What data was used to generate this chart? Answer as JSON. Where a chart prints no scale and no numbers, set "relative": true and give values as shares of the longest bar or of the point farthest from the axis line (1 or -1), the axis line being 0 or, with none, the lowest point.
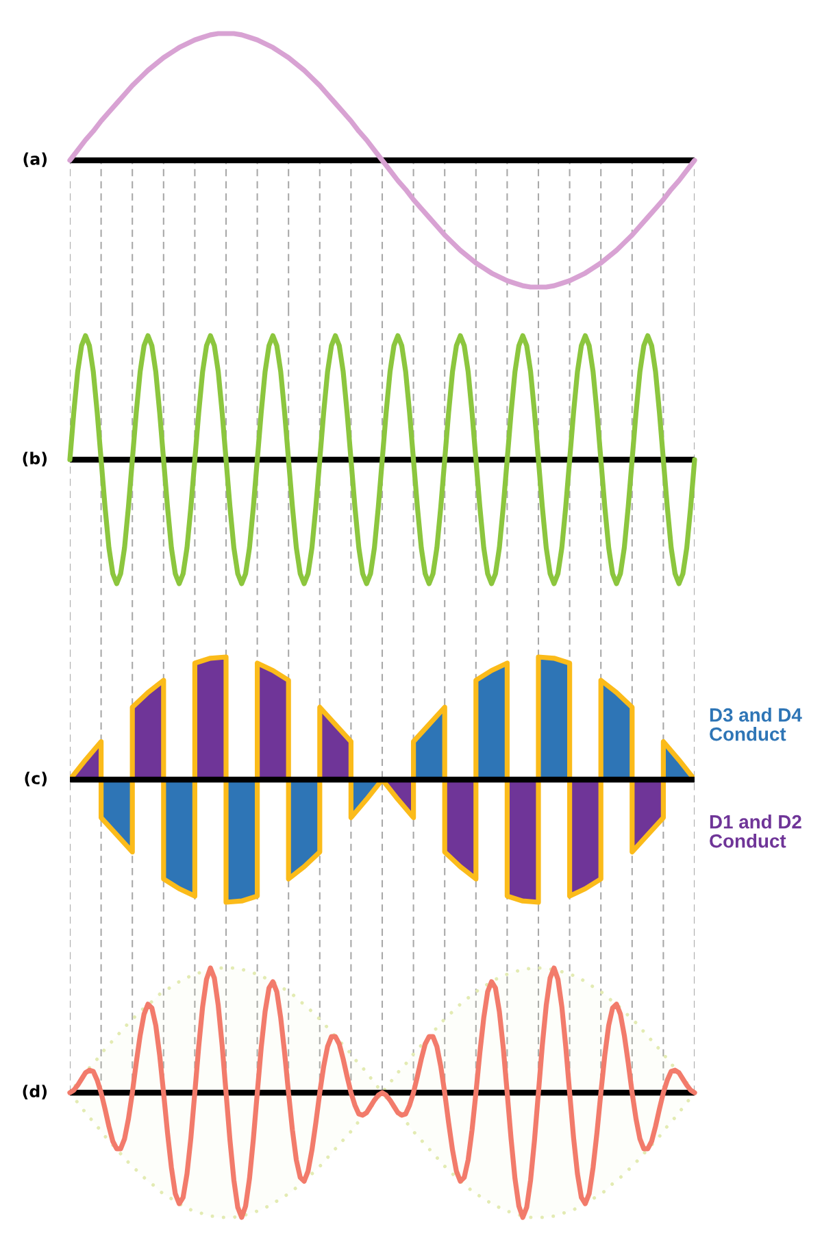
{
  "chart_data": [
    {
      "type": "line",
      "title": "(a)",
      "relative": true,
      "grid": "x",
      "categories": [
        null,
        null,
        null,
        null,
        null,
        null,
        null,
        null,
        null,
        null,
        null,
        null,
        null,
        null,
        null,
        null,
        null,
        null,
        null,
        null,
        null,
        null,
        null,
        null,
        null,
        null,
        null,
        null,
        null,
        null,
        null,
        null,
        null,
        null,
        null,
        null,
        null,
        null,
        null,
        null,
        null,
        null,
        null,
        null,
        null,
        null,
        null,
        null,
        null,
        null,
        null,
        null,
        null,
        null,
        null,
        null,
        null,
        null,
        null,
        null,
        null,
        null,
        null,
        null,
        null,
        null,
        null,
        null,
        null,
        null,
        null,
        null,
        null,
        null,
        null,
        null,
        null,
        null,
        null,
        null,
        null
      ],
      "series": [
        {
          "color": "#d8a2d3",
          "values": [
            0,
            0.08,
            0.16,
            0.23,
            0.31,
            0.38,
            0.45,
            0.52,
            0.59,
            0.65,
            0.71,
            0.76,
            0.81,
            0.85,
            0.89,
            0.92,
            0.95,
            0.97,
            0.99,
            1,
            1,
            1,
            0.99,
            0.97,
            0.95,
            0.92,
            0.89,
            0.85,
            0.81,
            0.76,
            0.71,
            0.65,
            0.59,
            0.52,
            0.45,
            0.38,
            0.31,
            0.23,
            0.16,
            0.08,
            0,
            -0.08,
            -0.16,
            -0.23,
            -0.31,
            -0.38,
            -0.45,
            -0.52,
            -0.59,
            -0.65,
            -0.71,
            -0.76,
            -0.81,
            -0.85,
            -0.89,
            -0.92,
            -0.95,
            -0.97,
            -0.99,
            -1,
            -1,
            -1,
            -0.99,
            -0.97,
            -0.95,
            -0.92,
            -0.89,
            -0.85,
            -0.81,
            -0.76,
            -0.71,
            -0.65,
            -0.59,
            -0.52,
            -0.45,
            -0.38,
            -0.31,
            -0.23,
            -0.16,
            -0.08,
            0
          ]
        }
      ]
    },
    {
      "type": "line",
      "title": "(b)",
      "relative": true,
      "grid": "x",
      "categories": [
        null,
        null,
        null,
        null,
        null,
        null,
        null,
        null,
        null,
        null,
        null,
        null,
        null,
        null,
        null,
        null,
        null,
        null,
        null,
        null,
        null,
        null,
        null,
        null,
        null,
        null,
        null,
        null,
        null,
        null,
        null,
        null,
        null,
        null,
        null,
        null,
        null,
        null,
        null,
        null,
        null,
        null,
        null,
        null,
        null,
        null,
        null,
        null,
        null,
        null,
        null,
        null,
        null,
        null,
        null,
        null,
        null,
        null,
        null,
        null,
        null,
        null,
        null,
        null,
        null,
        null,
        null,
        null,
        null,
        null,
        null,
        null,
        null,
        null,
        null,
        null,
        null,
        null,
        null,
        null,
        null,
        null,
        null,
        null,
        null,
        null,
        null,
        null,
        null,
        null,
        null,
        null,
        null,
        null,
        null,
        null,
        null,
        null,
        null,
        null,
        null,
        null,
        null,
        null,
        null,
        null,
        null,
        null,
        null,
        null,
        null,
        null,
        null,
        null,
        null,
        null,
        null,
        null,
        null,
        null,
        null,
        null,
        null,
        null,
        null,
        null,
        null,
        null,
        null,
        null,
        null,
        null,
        null,
        null,
        null,
        null,
        null,
        null,
        null,
        null,
        null,
        null,
        null,
        null,
        null,
        null,
        null,
        null,
        null,
        null,
        null,
        null,
        null,
        null,
        null,
        null,
        null,
        null,
        null,
        null,
        null
      ],
      "series": [
        {
          "color": "#8cc63e",
          "values": [
            0,
            0.38,
            0.71,
            0.92,
            1,
            0.92,
            0.71,
            0.38,
            0,
            -0.38,
            -0.71,
            -0.92,
            -1,
            -0.92,
            -0.71,
            -0.38,
            0,
            0.38,
            0.71,
            0.92,
            1,
            0.92,
            0.71,
            0.38,
            0,
            -0.38,
            -0.71,
            -0.92,
            -1,
            -0.92,
            -0.71,
            -0.38,
            0,
            0.38,
            0.71,
            0.92,
            1,
            0.92,
            0.71,
            0.38,
            0,
            -0.38,
            -0.71,
            -0.92,
            -1,
            -0.92,
            -0.71,
            -0.38,
            0,
            0.38,
            0.71,
            0.92,
            1,
            0.92,
            0.71,
            0.38,
            0,
            -0.38,
            -0.71,
            -0.92,
            -1,
            -0.92,
            -0.71,
            -0.38,
            0,
            0.38,
            0.71,
            0.92,
            1,
            0.92,
            0.71,
            0.38,
            0,
            -0.38,
            -0.71,
            -0.92,
            -1,
            -0.92,
            -0.71,
            -0.38,
            0,
            0.38,
            0.71,
            0.92,
            1,
            0.92,
            0.71,
            0.38,
            0,
            -0.38,
            -0.71,
            -0.92,
            -1,
            -0.92,
            -0.71,
            -0.38,
            0,
            0.38,
            0.71,
            0.92,
            1,
            0.92,
            0.71,
            0.38,
            0,
            -0.38,
            -0.71,
            -0.92,
            -1,
            -0.92,
            -0.71,
            -0.38,
            0,
            0.38,
            0.71,
            0.92,
            1,
            0.92,
            0.71,
            0.38,
            0,
            -0.38,
            -0.71,
            -0.92,
            -1,
            -0.92,
            -0.71,
            -0.38,
            0,
            0.38,
            0.71,
            0.92,
            1,
            0.92,
            0.71,
            0.38,
            0,
            -0.38,
            -0.71,
            -0.92,
            -1,
            -0.92,
            -0.71,
            -0.38,
            0,
            0.38,
            0.71,
            0.92,
            1,
            0.92,
            0.71,
            0.38,
            0,
            -0.38,
            -0.71,
            -0.92,
            -1,
            -0.92,
            -0.71,
            -0.38,
            0
          ]
        }
      ]
    },
    {
      "type": "area",
      "title": "(c)",
      "relative": true,
      "grid": "x",
      "categories": [
        null,
        null,
        null,
        null,
        null,
        null,
        null,
        null,
        null,
        null,
        null,
        null,
        null,
        null,
        null,
        null,
        null,
        null,
        null,
        null,
        null,
        null,
        null,
        null,
        null,
        null,
        null,
        null,
        null,
        null,
        null,
        null,
        null,
        null,
        null,
        null,
        null,
        null,
        null,
        null,
        null
      ],
      "series": [
        {
          "name": "D3 and D4 Conduct",
          "color": "#2e75b6",
          "values": [
            null,
            null,
            -0.31,
            -0.45,
            -0.59,
            null,
            null,
            null,
            null,
            null,
            null,
            null,
            null,
            null,
            null,
            null,
            null,
            null,
            null,
            null,
            null,
            null,
            null,
            null,
            null,
            null,
            null,
            null,
            null,
            null,
            null,
            null,
            null,
            null,
            null,
            null,
            null,
            null,
            null,
            null,
            null
          ]
        },
        {
          "name": "D1 and D2 Conduct",
          "color": "#6f3598",
          "values": [
            0,
            0.16,
            0.31,
            null,
            null,
            null,
            null,
            null,
            null,
            null,
            null,
            null,
            null,
            null,
            null,
            null,
            null,
            null,
            null,
            null,
            null,
            null,
            null,
            null,
            null,
            null,
            null,
            null,
            null,
            null,
            null,
            null,
            null,
            null,
            null,
            null,
            null,
            null,
            null,
            null,
            null
          ]
        },
        {
          "color": "#6f3598",
          "values": [
            null,
            null,
            null,
            null,
            0.59,
            0.71,
            0.81,
            null,
            null,
            null,
            null,
            null,
            null,
            null,
            null,
            null,
            null,
            null,
            null,
            null,
            null,
            null,
            null,
            null,
            null,
            null,
            null,
            null,
            null,
            null,
            null,
            null,
            null,
            null,
            null,
            null,
            null,
            null,
            null,
            null,
            null
          ]
        },
        {
          "color": "#2e75b6",
          "values": [
            null,
            null,
            null,
            null,
            null,
            null,
            -0.81,
            -0.89,
            -0.95,
            null,
            null,
            null,
            null,
            null,
            null,
            null,
            null,
            null,
            null,
            null,
            null,
            null,
            null,
            null,
            null,
            null,
            null,
            null,
            null,
            null,
            null,
            null,
            null,
            null,
            null,
            null,
            null,
            null,
            null,
            null,
            null
          ]
        },
        {
          "color": "#6f3598",
          "values": [
            null,
            null,
            null,
            null,
            null,
            null,
            null,
            null,
            0.95,
            0.99,
            1,
            null,
            null,
            null,
            null,
            null,
            null,
            null,
            null,
            null,
            null,
            null,
            null,
            null,
            null,
            null,
            null,
            null,
            null,
            null,
            null,
            null,
            null,
            null,
            null,
            null,
            null,
            null,
            null,
            null,
            null
          ]
        },
        {
          "color": "#2e75b6",
          "values": [
            null,
            null,
            null,
            null,
            null,
            null,
            null,
            null,
            null,
            null,
            -1,
            -0.99,
            -0.95,
            null,
            null,
            null,
            null,
            null,
            null,
            null,
            null,
            null,
            null,
            null,
            null,
            null,
            null,
            null,
            null,
            null,
            null,
            null,
            null,
            null,
            null,
            null,
            null,
            null,
            null,
            null,
            null
          ]
        },
        {
          "color": "#6f3598",
          "values": [
            null,
            null,
            null,
            null,
            null,
            null,
            null,
            null,
            null,
            null,
            null,
            null,
            0.95,
            0.89,
            0.81,
            null,
            null,
            null,
            null,
            null,
            null,
            null,
            null,
            null,
            null,
            null,
            null,
            null,
            null,
            null,
            null,
            null,
            null,
            null,
            null,
            null,
            null,
            null,
            null,
            null,
            null
          ]
        },
        {
          "color": "#2e75b6",
          "values": [
            null,
            null,
            null,
            null,
            null,
            null,
            null,
            null,
            null,
            null,
            null,
            null,
            null,
            null,
            -0.81,
            -0.71,
            -0.59,
            null,
            null,
            null,
            null,
            null,
            null,
            null,
            null,
            null,
            null,
            null,
            null,
            null,
            null,
            null,
            null,
            null,
            null,
            null,
            null,
            null,
            null,
            null,
            null
          ]
        },
        {
          "color": "#6f3598",
          "values": [
            null,
            null,
            null,
            null,
            null,
            null,
            null,
            null,
            null,
            null,
            null,
            null,
            null,
            null,
            null,
            null,
            0.59,
            0.45,
            0.31,
            null,
            null,
            null,
            null,
            null,
            null,
            null,
            null,
            null,
            null,
            null,
            null,
            null,
            null,
            null,
            null,
            null,
            null,
            null,
            null,
            null,
            null
          ]
        },
        {
          "color": "#2e75b6",
          "values": [
            null,
            null,
            null,
            null,
            null,
            null,
            null,
            null,
            null,
            null,
            null,
            null,
            null,
            null,
            null,
            null,
            null,
            null,
            -0.31,
            -0.16,
            0,
            null,
            null,
            null,
            null,
            null,
            null,
            null,
            null,
            null,
            null,
            null,
            null,
            null,
            null,
            null,
            null,
            null,
            null,
            null,
            null
          ]
        },
        {
          "color": "#6f3598",
          "values": [
            null,
            null,
            null,
            null,
            null,
            null,
            null,
            null,
            null,
            null,
            null,
            null,
            null,
            null,
            null,
            null,
            null,
            null,
            null,
            null,
            0,
            -0.16,
            -0.31,
            null,
            null,
            null,
            null,
            null,
            null,
            null,
            null,
            null,
            null,
            null,
            null,
            null,
            null,
            null,
            null,
            null,
            null
          ]
        },
        {
          "color": "#2e75b6",
          "values": [
            null,
            null,
            null,
            null,
            null,
            null,
            null,
            null,
            null,
            null,
            null,
            null,
            null,
            null,
            null,
            null,
            null,
            null,
            null,
            null,
            null,
            null,
            0.31,
            0.45,
            0.59,
            null,
            null,
            null,
            null,
            null,
            null,
            null,
            null,
            null,
            null,
            null,
            null,
            null,
            null,
            null,
            null
          ]
        },
        {
          "color": "#6f3598",
          "values": [
            null,
            null,
            null,
            null,
            null,
            null,
            null,
            null,
            null,
            null,
            null,
            null,
            null,
            null,
            null,
            null,
            null,
            null,
            null,
            null,
            null,
            null,
            null,
            null,
            -0.59,
            -0.71,
            -0.81,
            null,
            null,
            null,
            null,
            null,
            null,
            null,
            null,
            null,
            null,
            null,
            null,
            null,
            null
          ]
        },
        {
          "color": "#2e75b6",
          "values": [
            null,
            null,
            null,
            null,
            null,
            null,
            null,
            null,
            null,
            null,
            null,
            null,
            null,
            null,
            null,
            null,
            null,
            null,
            null,
            null,
            null,
            null,
            null,
            null,
            null,
            null,
            0.81,
            0.89,
            0.95,
            null,
            null,
            null,
            null,
            null,
            null,
            null,
            null,
            null,
            null,
            null,
            null
          ]
        },
        {
          "color": "#6f3598",
          "values": [
            null,
            null,
            null,
            null,
            null,
            null,
            null,
            null,
            null,
            null,
            null,
            null,
            null,
            null,
            null,
            null,
            null,
            null,
            null,
            null,
            null,
            null,
            null,
            null,
            null,
            null,
            null,
            null,
            -0.95,
            -0.99,
            -1,
            null,
            null,
            null,
            null,
            null,
            null,
            null,
            null,
            null,
            null
          ]
        },
        {
          "color": "#2e75b6",
          "values": [
            null,
            null,
            null,
            null,
            null,
            null,
            null,
            null,
            null,
            null,
            null,
            null,
            null,
            null,
            null,
            null,
            null,
            null,
            null,
            null,
            null,
            null,
            null,
            null,
            null,
            null,
            null,
            null,
            null,
            null,
            1,
            0.99,
            0.95,
            null,
            null,
            null,
            null,
            null,
            null,
            null,
            null
          ]
        },
        {
          "color": "#6f3598",
          "values": [
            null,
            null,
            null,
            null,
            null,
            null,
            null,
            null,
            null,
            null,
            null,
            null,
            null,
            null,
            null,
            null,
            null,
            null,
            null,
            null,
            null,
            null,
            null,
            null,
            null,
            null,
            null,
            null,
            null,
            null,
            null,
            null,
            -0.95,
            -0.89,
            -0.81,
            null,
            null,
            null,
            null,
            null,
            null
          ]
        },
        {
          "color": "#2e75b6",
          "values": [
            null,
            null,
            null,
            null,
            null,
            null,
            null,
            null,
            null,
            null,
            null,
            null,
            null,
            null,
            null,
            null,
            null,
            null,
            null,
            null,
            null,
            null,
            null,
            null,
            null,
            null,
            null,
            null,
            null,
            null,
            null,
            null,
            null,
            null,
            0.81,
            0.71,
            0.59,
            null,
            null,
            null,
            null
          ]
        },
        {
          "color": "#6f3598",
          "values": [
            null,
            null,
            null,
            null,
            null,
            null,
            null,
            null,
            null,
            null,
            null,
            null,
            null,
            null,
            null,
            null,
            null,
            null,
            null,
            null,
            null,
            null,
            null,
            null,
            null,
            null,
            null,
            null,
            null,
            null,
            null,
            null,
            null,
            null,
            null,
            null,
            -0.59,
            -0.45,
            -0.31,
            null,
            null
          ]
        },
        {
          "color": "#2e75b6",
          "values": [
            null,
            null,
            null,
            null,
            null,
            null,
            null,
            null,
            null,
            null,
            null,
            null,
            null,
            null,
            null,
            null,
            null,
            null,
            null,
            null,
            null,
            null,
            null,
            null,
            null,
            null,
            null,
            null,
            null,
            null,
            null,
            null,
            null,
            null,
            null,
            null,
            null,
            null,
            0.31,
            0.16,
            0
          ]
        }
      ]
    },
    {
      "type": "line",
      "title": "(d)",
      "relative": true,
      "grid": "x",
      "categories": [
        null,
        null,
        null,
        null,
        null,
        null,
        null,
        null,
        null,
        null,
        null,
        null,
        null,
        null,
        null,
        null,
        null,
        null,
        null,
        null,
        null,
        null,
        null,
        null,
        null,
        null,
        null,
        null,
        null,
        null,
        null,
        null,
        null,
        null,
        null,
        null,
        null,
        null,
        null,
        null,
        null,
        null,
        null,
        null,
        null,
        null,
        null,
        null,
        null,
        null,
        null,
        null,
        null,
        null,
        null,
        null,
        null,
        null,
        null,
        null,
        null,
        null,
        null,
        null,
        null,
        null,
        null,
        null,
        null,
        null,
        null,
        null,
        null,
        null,
        null,
        null,
        null,
        null,
        null,
        null,
        null,
        null,
        null,
        null,
        null,
        null,
        null,
        null,
        null,
        null,
        null,
        null,
        null,
        null,
        null,
        null,
        null,
        null,
        null,
        null,
        null,
        null,
        null,
        null,
        null,
        null,
        null,
        null,
        null,
        null,
        null,
        null,
        null,
        null,
        null,
        null,
        null,
        null,
        null,
        null,
        null,
        null,
        null,
        null,
        null,
        null,
        null,
        null,
        null,
        null,
        null,
        null,
        null,
        null,
        null,
        null,
        null,
        null,
        null,
        null,
        null,
        null,
        null,
        null,
        null,
        null,
        null,
        null,
        null,
        null,
        null,
        null,
        null,
        null,
        null,
        null,
        null,
        null,
        null,
        null,
        null
      ],
      "series": [
        {
          "color": "#f27b6b",
          "values": [
            0,
            0.02,
            0.06,
            0.11,
            0.16,
            0.18,
            0.17,
            0.1,
            0,
            -0.13,
            -0.27,
            -0.39,
            -0.45,
            -0.45,
            -0.37,
            -0.21,
            0,
            0.24,
            0.46,
            0.63,
            0.71,
            0.68,
            0.54,
            0.3,
            0,
            -0.32,
            -0.6,
            -0.81,
            -0.89,
            -0.84,
            -0.65,
            -0.36,
            0,
            0.37,
            0.69,
            0.91,
            1,
            0.92,
            0.7,
            0.38,
            0,
            -0.38,
            -0.7,
            -0.92,
            -1,
            -0.91,
            -0.69,
            -0.37,
            0,
            0.36,
            0.65,
            0.84,
            0.89,
            0.81,
            0.6,
            0.32,
            0,
            -0.3,
            -0.54,
            -0.68,
            -0.71,
            -0.63,
            -0.46,
            -0.24,
            0,
            0.21,
            0.37,
            0.45,
            0.45,
            0.39,
            0.27,
            0.13,
            0,
            -0.1,
            -0.17,
            -0.18,
            -0.16,
            -0.11,
            -0.06,
            -0.02,
            0,
            -0.02,
            -0.06,
            -0.11,
            -0.16,
            -0.18,
            -0.17,
            -0.1,
            0,
            0.13,
            0.27,
            0.39,
            0.45,
            0.45,
            0.37,
            0.21,
            0,
            -0.24,
            -0.46,
            -0.63,
            -0.71,
            -0.68,
            -0.54,
            -0.3,
            0,
            0.32,
            0.6,
            0.81,
            0.89,
            0.84,
            0.65,
            0.36,
            0,
            -0.37,
            -0.69,
            -0.91,
            -1,
            -0.92,
            -0.7,
            -0.38,
            0,
            0.38,
            0.7,
            0.92,
            1,
            0.91,
            0.69,
            0.37,
            0,
            -0.36,
            -0.65,
            -0.84,
            -0.89,
            -0.81,
            -0.6,
            -0.32,
            0,
            0.3,
            0.54,
            0.68,
            0.71,
            0.63,
            0.46,
            0.24,
            0,
            -0.21,
            -0.37,
            -0.45,
            -0.45,
            -0.39,
            -0.27,
            -0.13,
            0,
            0.1,
            0.17,
            0.18,
            0.16,
            0.11,
            0.06,
            0.02,
            0
          ],
          "upper": [
            0,
            0.04,
            0.08,
            0.12,
            0.16,
            0.2,
            0.23,
            0.27,
            0.31,
            0.35,
            0.38,
            0.42,
            0.45,
            0.49,
            0.52,
            0.56,
            0.59,
            0.62,
            0.65,
            0.68,
            0.71,
            0.73,
            0.76,
            0.79,
            0.81,
            0.83,
            0.85,
            0.87,
            0.89,
            0.91,
            0.92,
            0.94,
            0.95,
            0.96,
            0.97,
            0.98,
            0.99,
            0.99,
            1,
            1,
            1,
            1,
            1,
            0.99,
            0.99,
            0.98,
            0.97,
            0.96,
            0.95,
            0.94,
            0.92,
            0.91,
            0.89,
            0.87,
            0.85,
            0.83,
            0.81,
            0.79,
            0.76,
            0.73,
            0.71,
            0.68,
            0.65,
            0.62,
            0.59,
            0.56,
            0.52,
            0.49,
            0.45,
            0.42,
            0.38,
            0.35,
            0.31,
            0.27,
            0.23,
            0.2,
            0.16,
            0.12,
            0.08,
            0.04,
            0,
            0.04,
            0.08,
            0.12,
            0.16,
            0.2,
            0.23,
            0.27,
            0.31,
            0.35,
            0.38,
            0.42,
            0.45,
            0.49,
            0.52,
            0.56,
            0.59,
            0.62,
            0.65,
            0.68,
            0.71,
            0.73,
            0.76,
            0.79,
            0.81,
            0.83,
            0.85,
            0.87,
            0.89,
            0.91,
            0.92,
            0.94,
            0.95,
            0.96,
            0.97,
            0.98,
            0.99,
            0.99,
            1,
            1,
            1,
            1,
            1,
            0.99,
            0.99,
            0.98,
            0.97,
            0.96,
            0.95,
            0.94,
            0.92,
            0.91,
            0.89,
            0.87,
            0.85,
            0.83,
            0.81,
            0.79,
            0.76,
            0.73,
            0.71,
            0.68,
            0.65,
            0.62,
            0.59,
            0.56,
            0.52,
            0.49,
            0.45,
            0.42,
            0.38,
            0.35,
            0.31,
            0.27,
            0.23,
            0.2,
            0.16,
            0.12,
            0.08,
            0.04,
            0
          ],
          "lower": [
            0,
            -0.04,
            -0.08,
            -0.12,
            -0.16,
            -0.2,
            -0.23,
            -0.27,
            -0.31,
            -0.35,
            -0.38,
            -0.42,
            -0.45,
            -0.49,
            -0.52,
            -0.56,
            -0.59,
            -0.62,
            -0.65,
            -0.68,
            -0.71,
            -0.73,
            -0.76,
            -0.79,
            -0.81,
            -0.83,
            -0.85,
            -0.87,
            -0.89,
            -0.91,
            -0.92,
            -0.94,
            -0.95,
            -0.96,
            -0.97,
            -0.98,
            -0.99,
            -0.99,
            -1,
            -1,
            -1,
            -1,
            -1,
            -0.99,
            -0.99,
            -0.98,
            -0.97,
            -0.96,
            -0.95,
            -0.94,
            -0.92,
            -0.91,
            -0.89,
            -0.87,
            -0.85,
            -0.83,
            -0.81,
            -0.79,
            -0.76,
            -0.73,
            -0.71,
            -0.68,
            -0.65,
            -0.62,
            -0.59,
            -0.56,
            -0.52,
            -0.49,
            -0.45,
            -0.42,
            -0.38,
            -0.35,
            -0.31,
            -0.27,
            -0.23,
            -0.2,
            -0.16,
            -0.12,
            -0.08,
            -0.04,
            0,
            -0.04,
            -0.08,
            -0.12,
            -0.16,
            -0.2,
            -0.23,
            -0.27,
            -0.31,
            -0.35,
            -0.38,
            -0.42,
            -0.45,
            -0.49,
            -0.52,
            -0.56,
            -0.59,
            -0.62,
            -0.65,
            -0.68,
            -0.71,
            -0.73,
            -0.76,
            -0.79,
            -0.81,
            -0.83,
            -0.85,
            -0.87,
            -0.89,
            -0.91,
            -0.92,
            -0.94,
            -0.95,
            -0.96,
            -0.97,
            -0.98,
            -0.99,
            -0.99,
            -1,
            -1,
            -1,
            -1,
            -1,
            -0.99,
            -0.99,
            -0.98,
            -0.97,
            -0.96,
            -0.95,
            -0.94,
            -0.92,
            -0.91,
            -0.89,
            -0.87,
            -0.85,
            -0.83,
            -0.81,
            -0.79,
            -0.76,
            -0.73,
            -0.71,
            -0.68,
            -0.65,
            -0.62,
            -0.59,
            -0.56,
            -0.52,
            -0.49,
            -0.45,
            -0.42,
            -0.38,
            -0.35,
            -0.31,
            -0.27,
            -0.23,
            -0.2,
            -0.16,
            -0.12,
            -0.08,
            -0.04,
            0
          ]
        }
      ]
    }
  ]
}
